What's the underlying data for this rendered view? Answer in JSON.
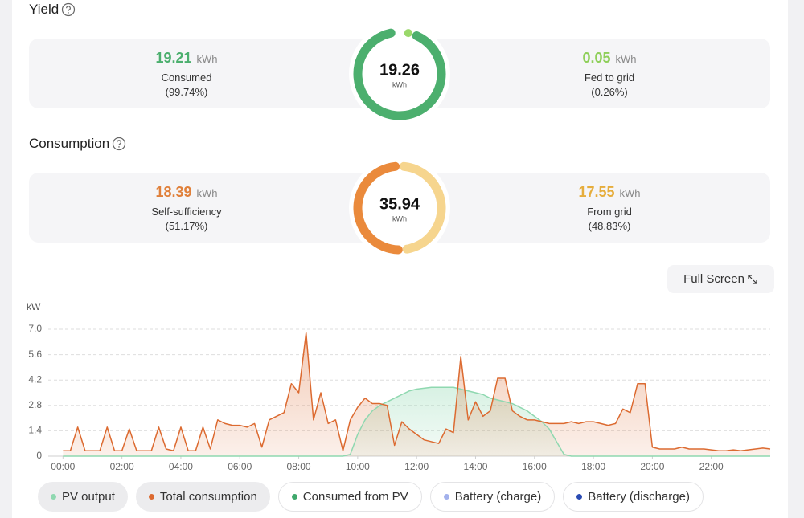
{
  "yield": {
    "title": "Yield",
    "total": 19.26,
    "total_unit": "kWh",
    "left": {
      "value": 19.21,
      "unit": "kWh",
      "label": "Consumed",
      "share": "(99.74%)",
      "color": "#4caf6e",
      "text_color": "#4caf6e"
    },
    "right": {
      "value": 0.05,
      "unit": "kWh",
      "label": "Fed to grid",
      "share": "(0.26%)",
      "color": "#9ad86a",
      "text_color": "#8fcf5a"
    }
  },
  "consumption": {
    "title": "Consumption",
    "total": 35.94,
    "total_unit": "kWh",
    "left": {
      "value": 18.39,
      "unit": "kWh",
      "label": "Self-sufficiency",
      "share": "(51.17%)",
      "color": "#ea8a3c",
      "text_color": "#e0803a"
    },
    "right": {
      "value": 17.55,
      "unit": "kWh",
      "label": "From grid",
      "share": "(48.83%)",
      "color": "#f6d58e",
      "text_color": "#e6ad3c"
    }
  },
  "full_screen": "Full Screen",
  "chart_data": {
    "type": "line",
    "y_label": "kW",
    "x": [
      0,
      0.25,
      0.5,
      0.75,
      1,
      1.25,
      1.5,
      1.75,
      2,
      2.25,
      2.5,
      2.75,
      3,
      3.25,
      3.5,
      3.75,
      4,
      4.25,
      4.5,
      4.75,
      5,
      5.25,
      5.5,
      5.75,
      6,
      6.25,
      6.5,
      6.75,
      7,
      7.25,
      7.5,
      7.75,
      8,
      8.25,
      8.5,
      8.75,
      9,
      9.25,
      9.5,
      9.75,
      10,
      10.25,
      10.5,
      10.75,
      11,
      11.25,
      11.5,
      11.75,
      12,
      12.25,
      12.5,
      12.75,
      13,
      13.25,
      13.5,
      13.75,
      14,
      14.25,
      14.5,
      14.75,
      15,
      15.25,
      15.5,
      15.75,
      16,
      16.25,
      16.5,
      16.75,
      17,
      17.25,
      17.5,
      17.75,
      18,
      18.25,
      18.5,
      18.75,
      19,
      19.25,
      19.5,
      19.75,
      20,
      20.25,
      20.5,
      20.75,
      21,
      21.25,
      21.5,
      21.75,
      22,
      22.25,
      22.5,
      22.75,
      23,
      23.25,
      23.5,
      23.75,
      24
    ],
    "xlim": [
      -0.5,
      24
    ],
    "xticks": [
      {
        "value": 0,
        "label": "00:00"
      },
      {
        "value": 2,
        "label": "02:00"
      },
      {
        "value": 4,
        "label": "04:00"
      },
      {
        "value": 6,
        "label": "06:00"
      },
      {
        "value": 8,
        "label": "08:00"
      },
      {
        "value": 10,
        "label": "10:00"
      },
      {
        "value": 12,
        "label": "12:00"
      },
      {
        "value": 14,
        "label": "14:00"
      },
      {
        "value": 16,
        "label": "16:00"
      },
      {
        "value": 18,
        "label": "18:00"
      },
      {
        "value": 20,
        "label": "20:00"
      },
      {
        "value": 22,
        "label": "22:00"
      }
    ],
    "ylim": [
      0,
      7
    ],
    "yticks": [
      0,
      1.4,
      2.8,
      4.2,
      5.6,
      {
        "value": 7,
        "label": "7.0"
      }
    ],
    "grid": true,
    "series": [
      {
        "name": "PV output",
        "color": "#8fd8b0",
        "area": true,
        "active": true,
        "values": [
          0,
          0,
          0,
          0,
          0,
          0,
          0,
          0,
          0,
          0,
          0,
          0,
          0,
          0,
          0,
          0,
          0,
          0,
          0,
          0,
          0,
          0,
          0,
          0,
          0,
          0,
          0,
          0,
          0,
          0,
          0,
          0,
          0,
          0,
          0,
          0,
          0,
          0,
          0,
          0.1,
          1.2,
          2.0,
          2.5,
          2.8,
          3.0,
          3.2,
          3.4,
          3.6,
          3.7,
          3.75,
          3.8,
          3.8,
          3.8,
          3.8,
          3.7,
          3.6,
          3.5,
          3.4,
          3.2,
          3.1,
          3.0,
          2.9,
          2.7,
          2.5,
          2.2,
          1.9,
          1.5,
          0.8,
          0.1,
          0,
          0,
          0,
          0,
          0,
          0,
          0,
          0,
          0,
          0,
          0,
          0,
          0,
          0,
          0,
          0,
          0,
          0,
          0,
          0,
          0,
          0,
          0,
          0,
          0,
          0,
          0,
          0
        ]
      },
      {
        "name": "Total consumption",
        "color": "#dc6a30",
        "area": true,
        "active": true,
        "values": [
          0.3,
          0.3,
          1.6,
          0.3,
          0.3,
          0.3,
          1.6,
          0.3,
          0.3,
          1.5,
          0.3,
          0.3,
          0.3,
          1.6,
          0.4,
          0.3,
          1.6,
          0.3,
          0.3,
          1.6,
          0.4,
          2.0,
          1.8,
          1.7,
          1.7,
          1.6,
          1.8,
          0.5,
          2.0,
          2.2,
          2.4,
          4.0,
          3.5,
          6.8,
          2.0,
          3.5,
          1.8,
          2.0,
          0.3,
          2.0,
          2.7,
          3.2,
          2.9,
          2.9,
          2.8,
          0.6,
          1.9,
          1.5,
          1.2,
          0.9,
          0.8,
          0.7,
          1.5,
          1.3,
          5.5,
          2.0,
          3.0,
          2.2,
          2.5,
          4.3,
          4.3,
          2.5,
          2.2,
          2.0,
          2.0,
          1.9,
          1.8,
          1.8,
          1.8,
          1.9,
          1.8,
          1.9,
          1.9,
          1.8,
          1.7,
          1.8,
          2.6,
          2.4,
          4.0,
          4.0,
          0.5,
          0.4,
          0.4,
          0.4,
          0.5,
          0.4,
          0.4,
          0.4,
          0.35,
          0.3,
          0.3,
          0.35,
          0.3,
          0.35,
          0.4,
          0.45,
          0.4
        ]
      },
      {
        "name": "Consumed from PV",
        "color": "#3fa86c",
        "area": false,
        "active": false,
        "values": [
          null,
          null,
          null,
          null,
          null,
          null,
          null,
          null,
          null,
          null,
          null,
          null,
          null,
          null,
          null,
          null,
          null,
          null,
          null,
          null,
          null,
          null,
          null,
          null,
          null,
          null,
          null,
          null,
          null,
          null,
          null,
          null,
          null,
          null,
          null,
          null,
          null,
          null,
          null,
          null,
          null,
          null,
          null,
          null,
          null,
          null,
          null,
          null,
          null,
          null,
          null,
          null,
          null,
          null,
          null,
          null,
          null,
          null,
          null,
          null,
          null,
          null,
          null,
          null,
          null,
          null,
          null,
          null,
          null,
          null,
          null,
          null,
          null,
          null,
          null,
          null,
          null,
          null,
          null,
          null,
          null,
          null,
          null,
          null,
          null,
          null,
          null,
          null,
          null,
          null,
          null,
          null,
          null,
          null,
          null,
          null,
          null
        ]
      },
      {
        "name": "Battery (charge)",
        "color": "#a3b1ec",
        "area": false,
        "active": false,
        "values": [
          null,
          null,
          null,
          null,
          null,
          null,
          null,
          null,
          null,
          null,
          null,
          null,
          null,
          null,
          null,
          null,
          null,
          null,
          null,
          null,
          null,
          null,
          null,
          null,
          null,
          null,
          null,
          null,
          null,
          null,
          null,
          null,
          null,
          null,
          null,
          null,
          null,
          null,
          null,
          null,
          null,
          null,
          null,
          null,
          null,
          null,
          null,
          null,
          null,
          null,
          null,
          null,
          null,
          null,
          null,
          null,
          null,
          null,
          null,
          null,
          null,
          null,
          null,
          null,
          null,
          null,
          null,
          null,
          null,
          null,
          null,
          null,
          null,
          null,
          null,
          null,
          null,
          null,
          null,
          null,
          null,
          null,
          null,
          null,
          null,
          null,
          null,
          null,
          null,
          null,
          null,
          null,
          null,
          null,
          null,
          null,
          null
        ]
      },
      {
        "name": "Battery (discharge)",
        "color": "#2a4bb3",
        "area": false,
        "active": false,
        "values": [
          null,
          null,
          null,
          null,
          null,
          null,
          null,
          null,
          null,
          null,
          null,
          null,
          null,
          null,
          null,
          null,
          null,
          null,
          null,
          null,
          null,
          null,
          null,
          null,
          null,
          null,
          null,
          null,
          null,
          null,
          null,
          null,
          null,
          null,
          null,
          null,
          null,
          null,
          null,
          null,
          null,
          null,
          null,
          null,
          null,
          null,
          null,
          null,
          null,
          null,
          null,
          null,
          null,
          null,
          null,
          null,
          null,
          null,
          null,
          null,
          null,
          null,
          null,
          null,
          null,
          null,
          null,
          null,
          null,
          null,
          null,
          null,
          null,
          null,
          null,
          null,
          null,
          null,
          null,
          null,
          null,
          null,
          null,
          null,
          null,
          null,
          null,
          null,
          null,
          null,
          null,
          null,
          null,
          null,
          null,
          null,
          null
        ]
      }
    ]
  }
}
